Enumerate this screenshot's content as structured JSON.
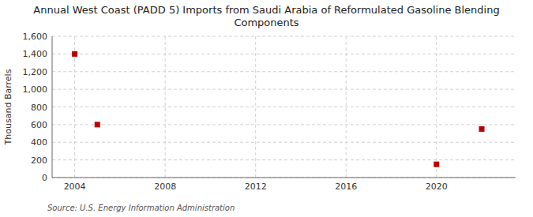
{
  "chart_data": {
    "type": "scatter",
    "title": "Annual West Coast (PADD 5) Imports from Saudi Arabia of Reformulated Gasoline Blending\nComponents",
    "ylabel": "Thousand Barrels",
    "source": "Source: U.S. Energy Information Administration",
    "x": [
      2004,
      2005,
      2020,
      2022
    ],
    "values": [
      1400,
      600,
      150,
      550
    ],
    "color": "#bb0000",
    "marker": "square",
    "xlim": [
      2003.0,
      2023.5
    ],
    "xticks": [
      2004,
      2008,
      2012,
      2016,
      2020
    ],
    "ylim": [
      0,
      1600
    ],
    "yticks": [
      0,
      200,
      400,
      600,
      800,
      {
        "value": 1000,
        "label": "1,000"
      },
      {
        "value": 1200,
        "label": "1,200"
      },
      {
        "value": 1400,
        "label": "1,400"
      },
      {
        "value": 1600,
        "label": "1,600"
      }
    ],
    "grid": true
  }
}
